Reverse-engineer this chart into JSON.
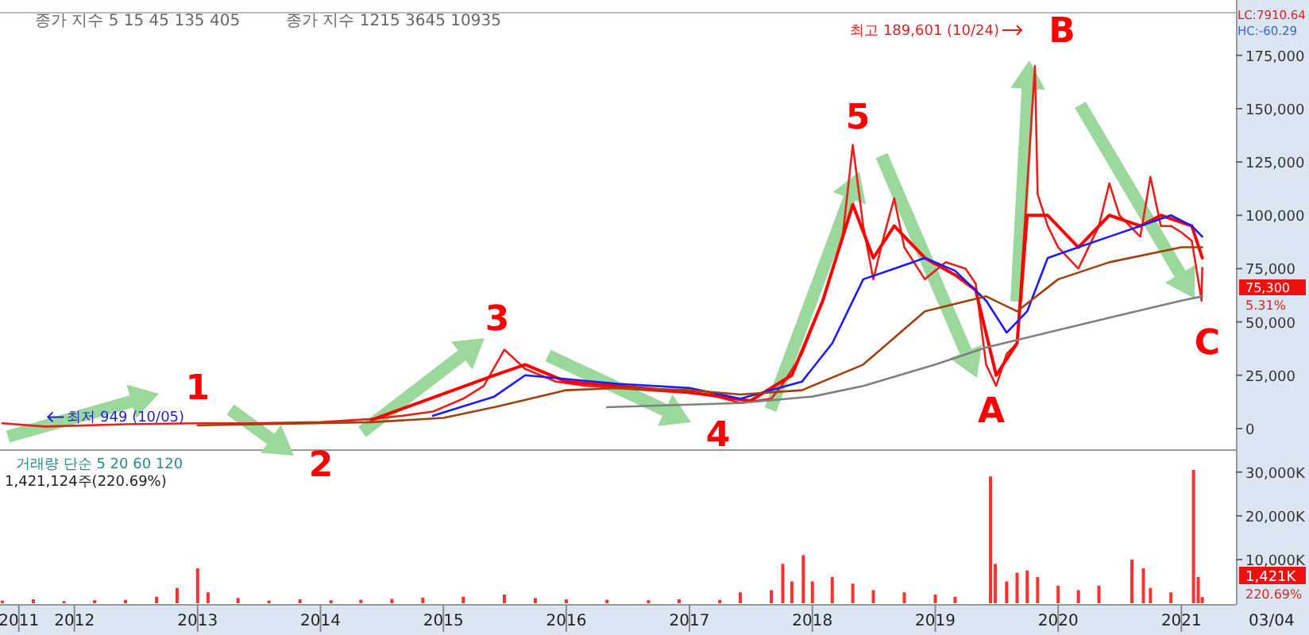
{
  "chart_data": [
    {
      "type": "line",
      "xlim": [
        "2011-05-25",
        "2021-06-12"
      ],
      "ylim": [
        -9700,
        195000
      ],
      "yticks": [
        {
          "value": 0,
          "label": "0"
        },
        {
          "value": 25000,
          "label": "25,000"
        },
        {
          "value": 50000,
          "label": "50,000"
        },
        {
          "value": 75000,
          "label": "75,000"
        },
        {
          "value": 100000,
          "label": "100,000"
        },
        {
          "value": 125000,
          "label": "125,000"
        },
        {
          "value": 150000,
          "label": "150,000"
        },
        {
          "value": 175000,
          "label": "175,000"
        }
      ],
      "tick_labels": "y",
      "line_style": "solid",
      "marker": "none",
      "series": [
        {
          "color": "#e8201c",
          "x": [
            "2011-06",
            "2011-10-05",
            "2012-06",
            "2013-01",
            "2013-06",
            "2014-01",
            "2014-06",
            "2014-09",
            "2014-12",
            "2015-03",
            "2015-05",
            "2015-07",
            "2015-09",
            "2015-12",
            "2016-03",
            "2016-06",
            "2016-09",
            "2016-12",
            "2017-03",
            "2017-06",
            "2017-09",
            "2017-10",
            "2017-12",
            "2018-02",
            "2018-04",
            "2018-05",
            "2018-06",
            "2018-07",
            "2018-08",
            "2018-09",
            "2018-10",
            "2018-12",
            "2019-02",
            "2019-04",
            "2019-05",
            "2019-06",
            "2019-07",
            "2019-08",
            "2019-09",
            "2019-10-24",
            "2019-11",
            "2019-12",
            "2020-01",
            "2020-03",
            "2020-05",
            "2020-06",
            "2020-07",
            "2020-09",
            "2020-10",
            "2020-11",
            "2020-12",
            "2021-01",
            "2021-02",
            "2021-03-02",
            "2021-03-04"
          ],
          "values": [
            2500,
            949,
            2000,
            2500,
            2500,
            3000,
            4500,
            6000,
            8000,
            14000,
            20000,
            37000,
            28000,
            22000,
            20000,
            19000,
            18000,
            17000,
            16000,
            12000,
            14000,
            20000,
            35000,
            60000,
            90000,
            133000,
            95000,
            70000,
            90000,
            108000,
            85000,
            70000,
            78000,
            75000,
            68000,
            30000,
            20000,
            35000,
            40000,
            170000,
            110000,
            95000,
            85000,
            75000,
            95000,
            115000,
            100000,
            90000,
            118000,
            95000,
            95000,
            92000,
            88000,
            60000,
            75300
          ]
        },
        {
          "color": "#ff0000",
          "x": [
            "2014-06",
            "2015-06",
            "2015-09",
            "2016-01",
            "2017-01",
            "2017-07",
            "2017-11",
            "2018-02",
            "2018-05",
            "2018-07",
            "2018-09",
            "2018-12",
            "2019-03",
            "2019-05",
            "2019-07",
            "2019-09",
            "2019-10",
            "2019-12",
            "2020-03",
            "2020-06",
            "2020-09",
            "2020-11",
            "2021-02",
            "2021-03-04"
          ],
          "values": [
            4000,
            25000,
            30000,
            22000,
            17000,
            13000,
            25000,
            60000,
            105000,
            80000,
            95000,
            80000,
            72000,
            65000,
            25000,
            40000,
            100000,
            100000,
            85000,
            100000,
            95000,
            100000,
            95000,
            80000
          ]
        },
        {
          "color": "#1a1aff",
          "x": [
            "2014-12",
            "2015-06",
            "2015-09",
            "2016-06",
            "2017-01",
            "2017-06",
            "2017-12",
            "2018-03",
            "2018-06",
            "2018-09",
            "2018-12",
            "2019-03",
            "2019-06",
            "2019-08",
            "2019-10",
            "2019-12",
            "2020-03",
            "2020-06",
            "2020-09",
            "2020-12",
            "2021-02",
            "2021-03-04"
          ],
          "values": [
            6000,
            15000,
            25000,
            21000,
            19000,
            14000,
            22000,
            40000,
            70000,
            75000,
            80000,
            74000,
            60000,
            45000,
            55000,
            80000,
            85000,
            90000,
            95000,
            100000,
            95000,
            90000
          ]
        },
        {
          "color": "#a0400a",
          "x": [
            "2013-01",
            "2014-06",
            "2015-01",
            "2015-06",
            "2016-01",
            "2016-06",
            "2017-01",
            "2017-06",
            "2017-12",
            "2018-06",
            "2018-12",
            "2019-06",
            "2019-09",
            "2020-01",
            "2020-06",
            "2021-01",
            "2021-03-04"
          ],
          "values": [
            1500,
            3000,
            5000,
            10000,
            18000,
            19000,
            18000,
            16000,
            18000,
            30000,
            55000,
            62000,
            55000,
            70000,
            78000,
            85000,
            85000
          ]
        },
        {
          "color": "#808080",
          "x": [
            "2016-05",
            "2017-06",
            "2018-01",
            "2018-06",
            "2019-01",
            "2019-06",
            "2019-12",
            "2020-06",
            "2021-01",
            "2021-03-04"
          ],
          "values": [
            10000,
            12000,
            15000,
            20000,
            30000,
            38000,
            45000,
            52000,
            60000,
            62000
          ]
        }
      ],
      "annotations": [
        "종가 지수 5 15 45 135 405",
        "종가 지수 1215 3645 10935",
        "LC:7910.64",
        "HC:-60.29",
        "최고 189,601 (10/24)",
        {
          "text": "최저 949 (10/05)",
          "x": "2011-10-05",
          "y": 949
        },
        "75,300",
        "5.31%",
        {
          "text": "1",
          "x": "2013-01",
          "y": 2500
        },
        "2",
        "3",
        "4",
        "5",
        "A",
        {
          "text": "B",
          "x": "2019-10-24",
          "y": 170000
        },
        "C"
      ]
    },
    {
      "type": "bar",
      "color": "#ff3030",
      "xlim": [
        "2011-05-25",
        "2021-06-12"
      ],
      "ylim": [
        0,
        34500
      ],
      "xticks": [
        {
          "value": "2011-07-20",
          "label": "2011"
        },
        {
          "value": "2012-01-01",
          "label": "2012"
        },
        {
          "value": "2013-01-01",
          "label": "2013"
        },
        {
          "value": "2014-01-01",
          "label": "2014"
        },
        {
          "value": "2015-01-01",
          "label": "2015"
        },
        {
          "value": "2016-01-01",
          "label": "2016"
        },
        {
          "value": "2017-01-01",
          "label": "2017"
        },
        {
          "value": "2018-01-01",
          "label": "2018"
        },
        {
          "value": "2019-01-01",
          "label": "2019"
        },
        {
          "value": "2020-01-01",
          "label": "2020"
        },
        {
          "value": "2021-01-01",
          "label": "2021"
        }
      ],
      "yticks": [
        {
          "value": 10000,
          "label": "10,000K"
        },
        {
          "value": 20000,
          "label": "20,000K"
        },
        {
          "value": 30000,
          "label": "30,000K"
        }
      ],
      "x": [
        "2011-06",
        "2011-09",
        "2011-12",
        "2012-03",
        "2012-06",
        "2012-09",
        "2012-11",
        "2013-01",
        "2013-02",
        "2013-05",
        "2013-08",
        "2013-11",
        "2014-02",
        "2014-05",
        "2014-08",
        "2014-11",
        "2015-03",
        "2015-07",
        "2015-10",
        "2016-01",
        "2016-05",
        "2016-09",
        "2016-12",
        "2017-04",
        "2017-06",
        "2017-09",
        "2017-10-05",
        "2017-11",
        "2017-12-05",
        "2018-01",
        "2018-03",
        "2018-05",
        "2018-07",
        "2018-10",
        "2019-01",
        "2019-03",
        "2019-06-14",
        "2019-06-28",
        "2019-08",
        "2019-09",
        "2019-10",
        "2019-11",
        "2020-01",
        "2020-03",
        "2020-05",
        "2020-08-07",
        "2020-09-10",
        "2020-10",
        "2020-12",
        "2021-02-06",
        "2021-02-20",
        "2021-03-04"
      ],
      "values": [
        600,
        900,
        500,
        700,
        800,
        1500,
        3500,
        8000,
        2500,
        1200,
        600,
        900,
        700,
        800,
        1000,
        1300,
        1500,
        2000,
        1200,
        900,
        800,
        700,
        900,
        800,
        2500,
        3000,
        9000,
        5000,
        11000,
        5000,
        6000,
        4500,
        3000,
        2500,
        2000,
        1500,
        29000,
        9000,
        5000,
        7000,
        7500,
        6000,
        4000,
        3000,
        4000,
        10000,
        8000,
        3500,
        2500,
        30500,
        6000,
        1421
      ],
      "annotations": [
        "거래량 단순 5 20 60 120",
        "1,421,124주(220.69%)",
        "1,421K",
        "220.69%",
        "03/04"
      ]
    }
  ]
}
